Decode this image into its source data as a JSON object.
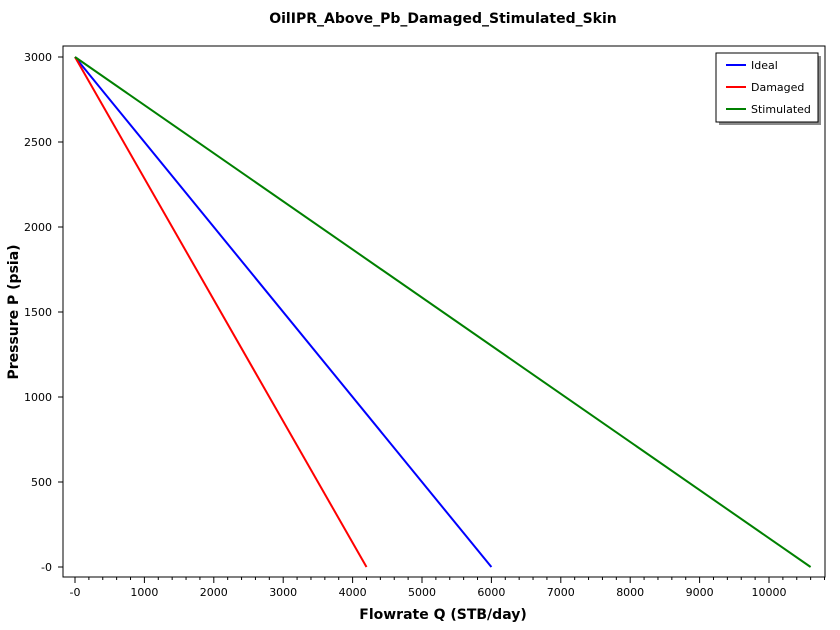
{
  "chart_data": {
    "type": "line",
    "title": "OilIPR_Above_Pb_Damaged_Stimulated_Skin",
    "xlabel": "Flowrate Q (STB/day)",
    "ylabel": "Pressure P (psia)",
    "xlim": [
      -200,
      10800
    ],
    "ylim": [
      -60,
      3060
    ],
    "xticks": [
      0,
      1000,
      2000,
      3000,
      4000,
      5000,
      6000,
      7000,
      8000,
      9000,
      10000
    ],
    "xtick_labels": [
      "-0",
      "1000",
      "2000",
      "3000",
      "4000",
      "5000",
      "6000",
      "7000",
      "8000",
      "9000",
      "10000"
    ],
    "yticks": [
      0,
      500,
      1000,
      1500,
      2000,
      2500,
      3000
    ],
    "ytick_labels": [
      "-0",
      "500",
      "1000",
      "1500",
      "2000",
      "2500",
      "3000"
    ],
    "x_minor_step": 200,
    "grid": false,
    "legend_position": "top-right",
    "series": [
      {
        "name": "Ideal",
        "color": "#0000ff",
        "x": [
          0,
          6000
        ],
        "y": [
          3000,
          0
        ]
      },
      {
        "name": "Damaged",
        "color": "#ff0000",
        "x": [
          0,
          4200
        ],
        "y": [
          3000,
          0
        ]
      },
      {
        "name": "Stimulated",
        "color": "#008000",
        "x": [
          0,
          10600
        ],
        "y": [
          3000,
          0
        ]
      }
    ]
  }
}
